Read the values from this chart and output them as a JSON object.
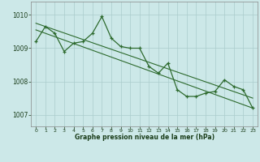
{
  "x": [
    0,
    1,
    2,
    3,
    4,
    5,
    6,
    7,
    8,
    9,
    10,
    11,
    12,
    13,
    14,
    15,
    16,
    17,
    18,
    19,
    20,
    21,
    22,
    23
  ],
  "y_main": [
    1009.2,
    1009.65,
    1009.45,
    1008.9,
    1009.15,
    1009.2,
    1009.45,
    1009.95,
    1009.3,
    1009.05,
    1009.0,
    1009.0,
    1008.45,
    1008.25,
    1008.55,
    1007.75,
    1007.55,
    1007.55,
    1007.65,
    1007.7,
    1008.05,
    1007.85,
    1007.75,
    1007.2
  ],
  "line_color": "#2d6a2d",
  "background_color": "#cce8e8",
  "grid_color": "#aacccc",
  "text_color": "#1a3d1a",
  "ylabel_vals": [
    1007,
    1008,
    1009,
    1010
  ],
  "xlabel": "Graphe pression niveau de la mer (hPa)",
  "ylim": [
    1006.65,
    1010.4
  ],
  "xlim": [
    -0.5,
    23.5
  ],
  "trend1_x": [
    0,
    23
  ],
  "trend1_y": [
    1009.75,
    1007.5
  ],
  "trend2_x": [
    0,
    23
  ],
  "trend2_y": [
    1009.55,
    1007.2
  ]
}
